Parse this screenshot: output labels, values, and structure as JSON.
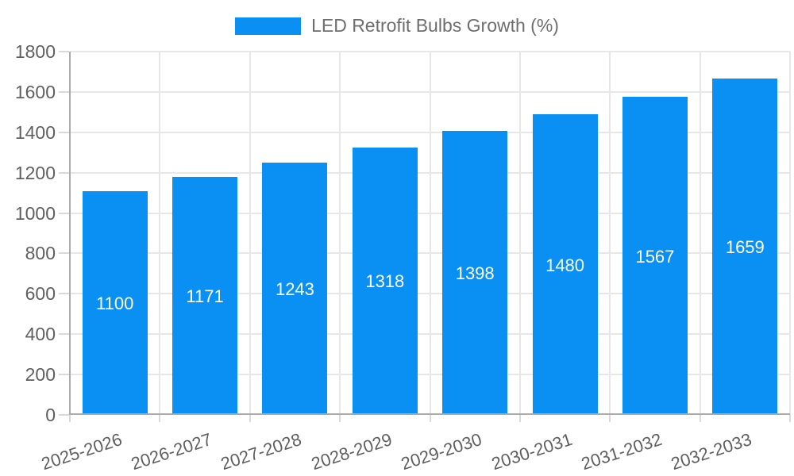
{
  "legend": {
    "series_label": "LED Retrofit Bulbs Growth (%)"
  },
  "chart_data": {
    "type": "bar",
    "title": "LED Retrofit Bulbs Growth (%)",
    "categories": [
      "2025-2026",
      "2026-2027",
      "2027-2028",
      "2028-2029",
      "2029-2030",
      "2030-2031",
      "2031-2032",
      "2032-2033"
    ],
    "values": [
      1100,
      1171,
      1243,
      1318,
      1398,
      1480,
      1567,
      1659
    ],
    "xlabel": "",
    "ylabel": "",
    "ylim": [
      0,
      1800
    ],
    "yticks": [
      0,
      200,
      400,
      600,
      800,
      1000,
      1200,
      1400,
      1600,
      1800
    ],
    "grid": true,
    "legend_position": "top-center",
    "value_labels": "centered-inside-bars",
    "colors": {
      "bar": "#0a90f2",
      "value_label": "#ffffff",
      "axis_label": "#5f5f5f",
      "legend_text": "#6e6e6e",
      "gridline": "#e7e7e7",
      "axis_line": "#ababab"
    }
  }
}
